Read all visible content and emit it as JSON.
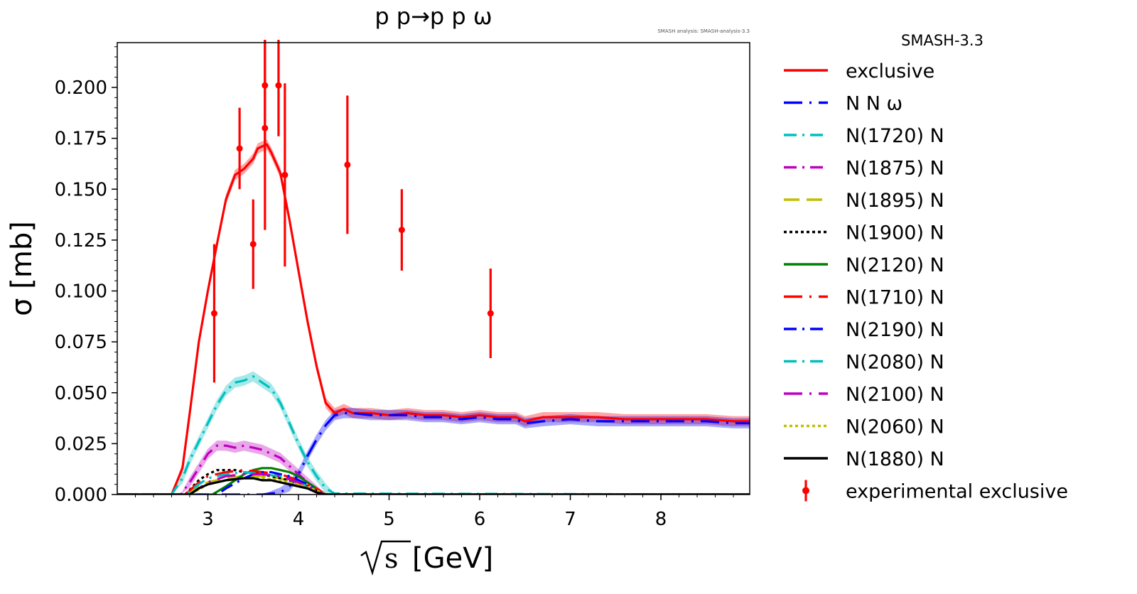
{
  "chart_data": {
    "type": "line",
    "title": "p p→p p ω",
    "note": "SMASH analysis: SMASH-analysis-3.3",
    "xlabel_symbol": "s",
    "xlabel_unit": "[GeV]",
    "ylabel": "σ [mb]",
    "xlim": [
      2.0,
      8.98
    ],
    "ylim": [
      0.0,
      0.222
    ],
    "xticks": [
      3,
      4,
      5,
      6,
      7,
      8
    ],
    "yticks": [
      0.0,
      0.025,
      0.05,
      0.075,
      0.1,
      0.125,
      0.15,
      0.175,
      0.2
    ],
    "ytick_labels": [
      "0.000",
      "0.025",
      "0.050",
      "0.075",
      "0.100",
      "0.125",
      "0.150",
      "0.175",
      "0.200"
    ],
    "legend_title": "SMASH-3.3",
    "legend_position": "outside-right",
    "grid": false,
    "series": [
      {
        "name": "exclusive",
        "color": "#ff0000",
        "dash": "solid",
        "band": true,
        "x": [
          2.0,
          2.6,
          2.72,
          2.8,
          2.9,
          3.0,
          3.1,
          3.2,
          3.3,
          3.4,
          3.5,
          3.55,
          3.6,
          3.65,
          3.7,
          3.8,
          3.9,
          4.0,
          4.1,
          4.2,
          4.3,
          4.4,
          4.5,
          4.6,
          4.8,
          5.0,
          5.2,
          5.4,
          5.6,
          5.8,
          6.0,
          6.2,
          6.4,
          6.5,
          6.7,
          7.0,
          7.3,
          7.6,
          7.9,
          8.2,
          8.5,
          8.8,
          8.98
        ],
        "y": [
          0.0,
          0.0,
          0.013,
          0.04,
          0.075,
          0.1,
          0.123,
          0.145,
          0.157,
          0.16,
          0.165,
          0.17,
          0.171,
          0.172,
          0.168,
          0.158,
          0.135,
          0.11,
          0.085,
          0.063,
          0.045,
          0.04,
          0.042,
          0.04,
          0.04,
          0.039,
          0.04,
          0.039,
          0.039,
          0.038,
          0.039,
          0.038,
          0.038,
          0.036,
          0.038,
          0.038,
          0.038,
          0.037,
          0.037,
          0.037,
          0.037,
          0.036,
          0.036
        ]
      },
      {
        "name": "N N ω",
        "color": "#0000ff",
        "dash": "longdashdot",
        "band": true,
        "x": [
          2.0,
          3.6,
          3.8,
          3.9,
          4.0,
          4.1,
          4.2,
          4.3,
          4.4,
          4.5,
          4.6,
          4.8,
          5.0,
          5.2,
          5.4,
          5.6,
          5.8,
          6.0,
          6.2,
          6.4,
          6.5,
          6.7,
          7.0,
          7.3,
          7.6,
          7.9,
          8.2,
          8.5,
          8.8,
          8.98
        ],
        "y": [
          0.0,
          0.0,
          0.001,
          0.004,
          0.01,
          0.019,
          0.027,
          0.034,
          0.039,
          0.04,
          0.04,
          0.039,
          0.039,
          0.039,
          0.038,
          0.038,
          0.037,
          0.038,
          0.037,
          0.037,
          0.035,
          0.036,
          0.037,
          0.036,
          0.036,
          0.036,
          0.036,
          0.036,
          0.035,
          0.035
        ]
      },
      {
        "name": "N(1720) N",
        "color": "#00bfbf",
        "dash": "dashdot",
        "band": true,
        "x": [
          2.0,
          2.6,
          2.72,
          2.8,
          2.9,
          3.0,
          3.1,
          3.2,
          3.3,
          3.4,
          3.5,
          3.6,
          3.7,
          3.8,
          3.9,
          4.0,
          4.1,
          4.2,
          4.3,
          4.4,
          8.98
        ],
        "y": [
          0.0,
          0.0,
          0.008,
          0.017,
          0.026,
          0.035,
          0.044,
          0.051,
          0.055,
          0.056,
          0.058,
          0.055,
          0.052,
          0.045,
          0.035,
          0.025,
          0.016,
          0.009,
          0.003,
          0.0005,
          0.0
        ]
      },
      {
        "name": "N(1875) N",
        "color": "#bf00bf",
        "dash": "dashdot",
        "band": true,
        "x": [
          2.0,
          2.7,
          2.8,
          2.9,
          3.0,
          3.1,
          3.2,
          3.3,
          3.4,
          3.5,
          3.6,
          3.7,
          3.8,
          3.9,
          4.0,
          4.1,
          4.2,
          4.3,
          8.98
        ],
        "y": [
          0.0,
          0.0,
          0.006,
          0.013,
          0.02,
          0.024,
          0.024,
          0.023,
          0.024,
          0.023,
          0.022,
          0.02,
          0.018,
          0.014,
          0.01,
          0.006,
          0.002,
          0.0,
          0.0
        ]
      },
      {
        "name": "N(1895) N",
        "color": "#bfbf00",
        "dash": "longdash",
        "band": false,
        "x": [
          2.0,
          2.75,
          2.9,
          3.0,
          3.2,
          3.4,
          3.6,
          3.8,
          4.0,
          4.2,
          4.3,
          8.98
        ],
        "y": [
          0.0,
          0.0,
          0.004,
          0.006,
          0.008,
          0.009,
          0.009,
          0.008,
          0.005,
          0.002,
          0.0,
          0.0
        ]
      },
      {
        "name": "N(1900) N",
        "color": "#000000",
        "dash": "dotted",
        "band": false,
        "x": [
          2.0,
          2.75,
          2.9,
          3.0,
          3.1,
          3.2,
          3.3,
          3.4,
          3.6,
          3.8,
          4.0,
          4.2,
          4.3,
          8.98
        ],
        "y": [
          0.0,
          0.0,
          0.007,
          0.01,
          0.012,
          0.012,
          0.012,
          0.011,
          0.01,
          0.008,
          0.006,
          0.002,
          0.0,
          0.0
        ]
      },
      {
        "name": "N(2120) N",
        "color": "#008000",
        "dash": "solid",
        "band": false,
        "x": [
          2.0,
          3.05,
          3.2,
          3.4,
          3.5,
          3.6,
          3.7,
          3.8,
          3.9,
          4.0,
          4.1,
          4.2,
          4.3,
          8.98
        ],
        "y": [
          0.0,
          0.0,
          0.004,
          0.01,
          0.012,
          0.013,
          0.013,
          0.012,
          0.011,
          0.009,
          0.006,
          0.003,
          0.0,
          0.0
        ]
      },
      {
        "name": "N(1710) N",
        "color": "#ff0000",
        "dash": "longdashdot",
        "band": false,
        "x": [
          2.0,
          2.75,
          2.9,
          3.0,
          3.2,
          3.4,
          3.6,
          3.8,
          4.0,
          4.2,
          4.3,
          8.98
        ],
        "y": [
          0.0,
          0.0,
          0.006,
          0.009,
          0.011,
          0.012,
          0.011,
          0.01,
          0.007,
          0.003,
          0.0,
          0.0
        ]
      },
      {
        "name": "N(2190) N",
        "color": "#0000ff",
        "dash": "dashdot",
        "band": false,
        "x": [
          2.0,
          3.1,
          3.2,
          3.4,
          3.5,
          3.6,
          3.7,
          3.8,
          3.9,
          4.0,
          4.1,
          4.2,
          4.3,
          8.98
        ],
        "y": [
          0.0,
          0.0,
          0.003,
          0.008,
          0.01,
          0.011,
          0.011,
          0.01,
          0.009,
          0.007,
          0.005,
          0.002,
          0.0,
          0.0
        ]
      },
      {
        "name": "N(2080) N",
        "color": "#00bfbf",
        "dash": "dashdot",
        "band": false,
        "x": [
          2.0,
          2.75,
          2.9,
          3.0,
          3.2,
          3.4,
          3.6,
          3.8,
          4.0,
          4.2,
          4.3,
          8.98
        ],
        "y": [
          0.0,
          0.0,
          0.005,
          0.008,
          0.01,
          0.011,
          0.01,
          0.009,
          0.006,
          0.002,
          0.0,
          0.0
        ]
      },
      {
        "name": "N(2100) N",
        "color": "#bf00bf",
        "dash": "longdashdot",
        "band": false,
        "x": [
          2.0,
          2.8,
          3.0,
          3.2,
          3.4,
          3.6,
          3.8,
          4.0,
          4.2,
          4.3,
          8.98
        ],
        "y": [
          0.0,
          0.0,
          0.006,
          0.009,
          0.01,
          0.01,
          0.009,
          0.006,
          0.002,
          0.0,
          0.0
        ]
      },
      {
        "name": "N(2060) N",
        "color": "#bfbf00",
        "dash": "dotted",
        "band": false,
        "x": [
          2.0,
          2.8,
          3.0,
          3.2,
          3.4,
          3.6,
          3.8,
          4.0,
          4.2,
          4.3,
          8.98
        ],
        "y": [
          0.0,
          0.0,
          0.005,
          0.007,
          0.008,
          0.008,
          0.007,
          0.005,
          0.002,
          0.0,
          0.0
        ]
      },
      {
        "name": "N(1880) N",
        "color": "#000000",
        "dash": "solid",
        "band": false,
        "x": [
          2.0,
          2.8,
          2.9,
          3.0,
          3.2,
          3.4,
          3.5,
          3.6,
          3.7,
          3.8,
          3.9,
          4.0,
          4.1,
          4.2,
          4.3,
          8.98
        ],
        "y": [
          0.0,
          0.0,
          0.003,
          0.005,
          0.007,
          0.008,
          0.008,
          0.007,
          0.007,
          0.006,
          0.005,
          0.004,
          0.003,
          0.001,
          0.0,
          0.0
        ]
      }
    ],
    "experimental": {
      "name": "experimental exclusive",
      "color": "#ff0000",
      "points": [
        {
          "x": 3.07,
          "y": 0.089,
          "err": 0.034
        },
        {
          "x": 3.35,
          "y": 0.17,
          "err": 0.02
        },
        {
          "x": 3.5,
          "y": 0.123,
          "err": 0.022
        },
        {
          "x": 3.63,
          "y": 0.201,
          "err": 0.033
        },
        {
          "x": 3.63,
          "y": 0.18,
          "err": 0.05
        },
        {
          "x": 3.78,
          "y": 0.201,
          "err": 0.025
        },
        {
          "x": 3.85,
          "y": 0.157,
          "err": 0.045
        },
        {
          "x": 4.54,
          "y": 0.162,
          "err": 0.034
        },
        {
          "x": 5.14,
          "y": 0.13,
          "err": 0.02
        },
        {
          "x": 6.12,
          "y": 0.089,
          "err": 0.022
        }
      ]
    }
  }
}
